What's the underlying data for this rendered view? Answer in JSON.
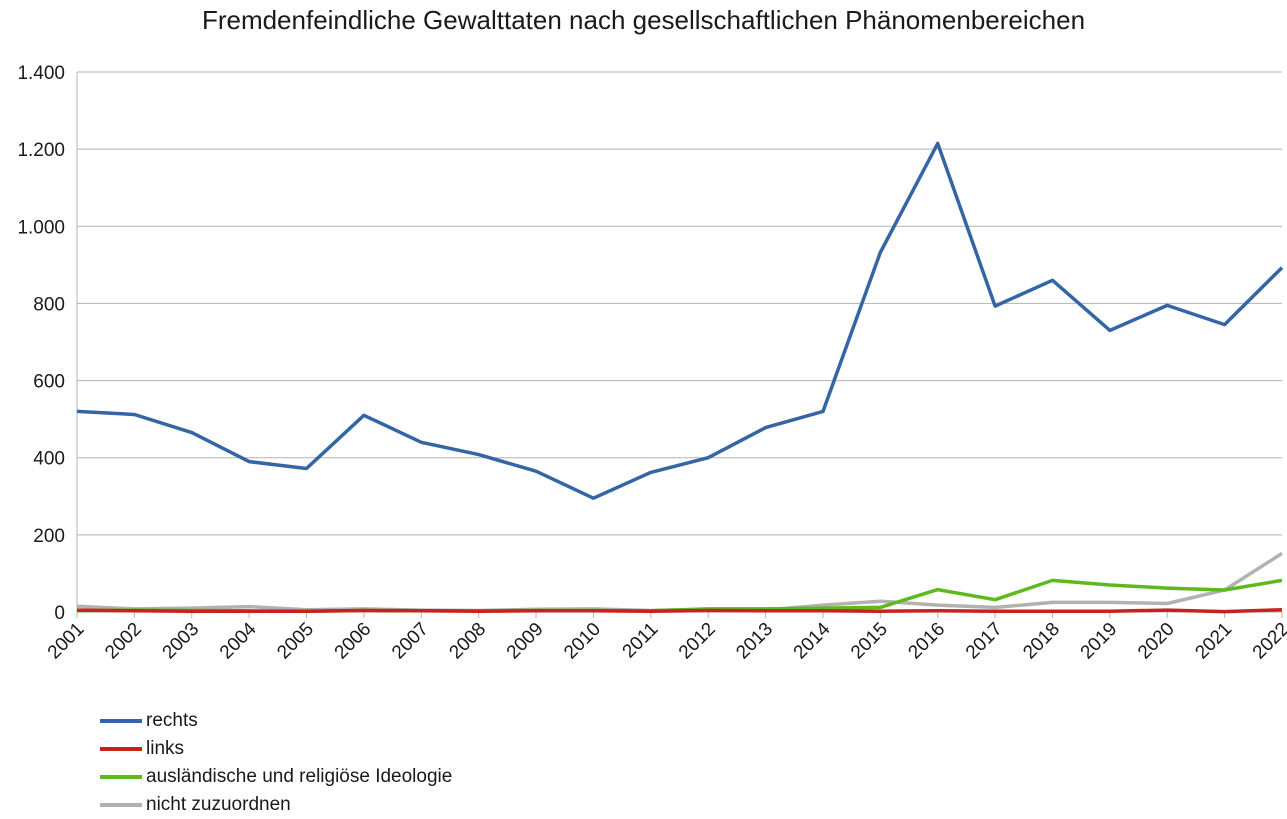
{
  "chart_data": {
    "type": "line",
    "title": "Fremdenfeindliche Gewalttaten nach gesellschaftlichen Phänomenbereichen",
    "xlabel": "",
    "ylabel": "",
    "categories": [
      "2001",
      "2002",
      "2003",
      "2004",
      "2005",
      "2006",
      "2007",
      "2008",
      "2009",
      "2010",
      "2011",
      "2012",
      "2013",
      "2014",
      "2015",
      "2016",
      "2017",
      "2018",
      "2019",
      "2020",
      "2021",
      "2022"
    ],
    "ylim": [
      0,
      1400
    ],
    "yticks": [
      0,
      200,
      400,
      600,
      800,
      1000,
      1200,
      1400
    ],
    "ytick_labels": [
      "0",
      "200",
      "400",
      "600",
      "800",
      "1.000",
      "1.200",
      "1.400"
    ],
    "grid": true,
    "legend_position": "bottom-left",
    "series": [
      {
        "name": "rechts",
        "color": "#3465a4",
        "values": [
          520,
          512,
          465,
          390,
          372,
          510,
          440,
          408,
          365,
          295,
          362,
          400,
          478,
          520,
          932,
          1215,
          793,
          860,
          730,
          795,
          745,
          893
        ]
      },
      {
        "name": "links",
        "color": "#c9211e",
        "values": [
          5,
          3,
          2,
          2,
          2,
          4,
          3,
          2,
          3,
          3,
          2,
          4,
          3,
          3,
          2,
          3,
          2,
          2,
          2,
          5,
          1,
          6
        ]
      },
      {
        "name": "ausländische und religiöse Ideologie",
        "color": "#5eb91e",
        "values": [
          3,
          5,
          4,
          3,
          2,
          4,
          3,
          3,
          4,
          4,
          3,
          8,
          8,
          10,
          12,
          58,
          32,
          82,
          70,
          62,
          57,
          82
        ]
      },
      {
        "name": "nicht zuzuordnen",
        "color": "#b2b2b2",
        "values": [
          15,
          8,
          10,
          14,
          6,
          8,
          5,
          4,
          7,
          8,
          4,
          7,
          5,
          18,
          28,
          18,
          12,
          25,
          25,
          22,
          57,
          152
        ]
      }
    ]
  }
}
